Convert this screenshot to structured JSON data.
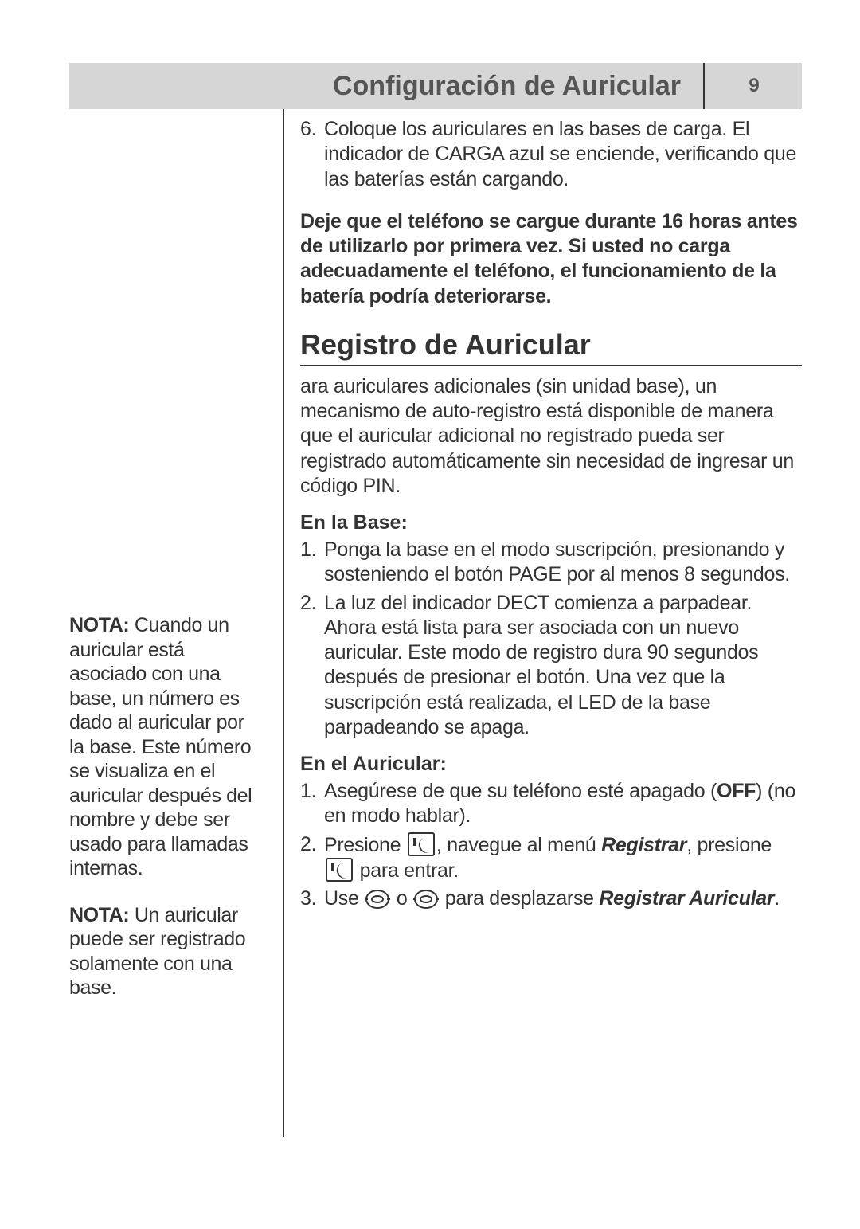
{
  "colors": {
    "header_bg": "#d6d6d6",
    "text": "#333333",
    "header_text": "#555555",
    "rule": "#333333",
    "page_bg": "#ffffff"
  },
  "typography": {
    "header_title_pt": 34,
    "page_number_pt": 24,
    "body_pt": 25,
    "h2_pt": 36
  },
  "header": {
    "title": "Configuración de Auricular",
    "page_number": "9"
  },
  "step6": {
    "number": "6.",
    "text": "Coloque los auriculares en las bases de carga. El indicador de CARGA azul se enciende,  verificando que las baterías están cargando."
  },
  "warning": "Deje que el teléfono se cargue durante 16 horas antes de utilizarlo por primera vez. Si usted no carga adecuadamente el teléfono, el funcionamiento de la batería podría deteriorarse.",
  "section_heading": "Registro de Auricular",
  "intro_para": "ara auriculares adicionales (sin unidad base), un mecanismo de auto-registro está disponible de manera que el auricular adicional no registrado pueda ser registrado automáticamente sin necesidad de ingresar un código PIN.",
  "base": {
    "heading": "En la Base:",
    "steps": [
      {
        "n": "1.",
        "text": "Ponga la base en el modo suscripción, presionando y sosteniendo el botón PAGE por al menos 8 segundos."
      },
      {
        "n": "2.",
        "text": "La luz del indicador DECT comienza a parpadear. Ahora está lista para ser asociada con un nuevo auricular. Este modo de registro dura 90 segundos después de presionar el botón. Una vez que la suscripción está realizada, el LED de la base parpadeando se apaga."
      }
    ]
  },
  "handset": {
    "heading": "En el Auricular:",
    "step1": {
      "n": "1.",
      "pre": "Asegúrese de que su teléfono esté apagado (",
      "off": "OFF",
      "post": ") (no en modo hablar)."
    },
    "step2": {
      "n": "2.",
      "pre": "Presione ",
      "mid": ", navegue al menú ",
      "registrar": "Registrar",
      "aft": ", presione ",
      "end": " para entrar."
    },
    "step3": {
      "n": "3.",
      "pre": "Use ",
      "o": " o ",
      "mid": " para desplazarse ",
      "registrar": "Registrar Auricular",
      "end": "."
    }
  },
  "sidebar": {
    "note1_label": "NOTA:",
    "note1_text": " Cuando un auricular está asociado con una base, un número es dado al auricular por la base. Este número se visualiza en el auricular después del nombre y debe ser usado para llamadas internas.",
    "note2_label": "NOTA:",
    "note2_text": " Un auricular puede ser registrado solamente con una base."
  }
}
